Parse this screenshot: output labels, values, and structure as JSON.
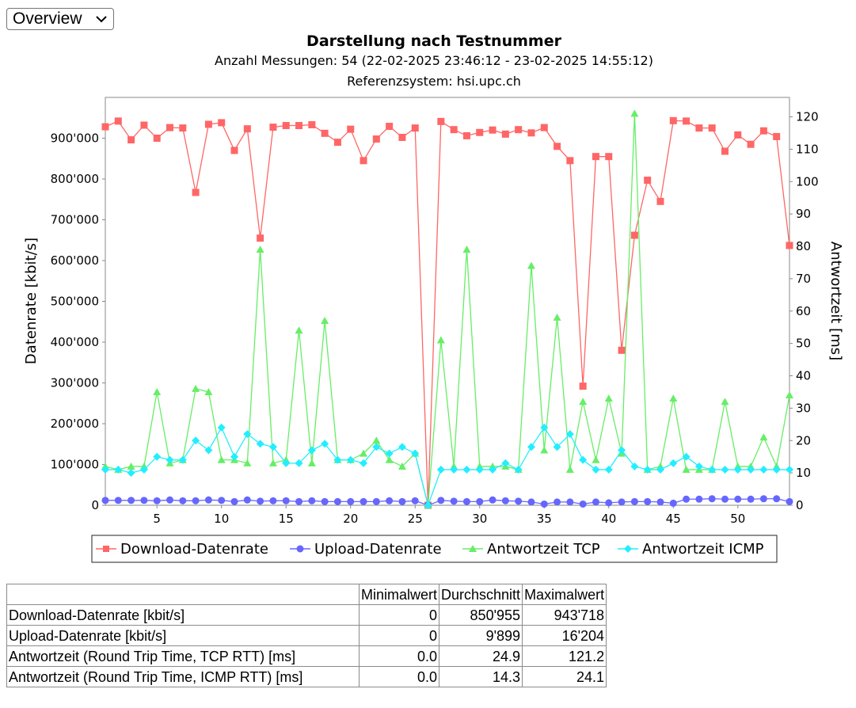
{
  "view_select": {
    "value": "Overview"
  },
  "chart_data": {
    "type": "line",
    "title": "Darstellung nach Testnummer",
    "subtitle1": "Anzahl Messungen: 54 (22-02-2025 23:46:12 - 23-02-2025 14:55:12)",
    "subtitle2": "Referenzsystem: hsi.upc.ch",
    "xlabel": "",
    "ylabel_left": "Datenrate [kbit/s]",
    "ylabel_right": "Antwortzeit [ms]",
    "xlim": [
      1,
      54
    ],
    "ylim_left": [
      0,
      1000000
    ],
    "ylim_right": [
      0,
      126
    ],
    "x_ticks": [
      "5",
      "10",
      "15",
      "20",
      "25",
      "30",
      "35",
      "40",
      "45",
      "50"
    ],
    "x_tick_values": [
      5,
      10,
      15,
      20,
      25,
      30,
      35,
      40,
      45,
      50
    ],
    "y_left_ticks": [
      "0",
      "100'000",
      "200'000",
      "300'000",
      "400'000",
      "500'000",
      "600'000",
      "700'000",
      "800'000",
      "900'000"
    ],
    "y_left_tick_values": [
      0,
      100000,
      200000,
      300000,
      400000,
      500000,
      600000,
      700000,
      800000,
      900000
    ],
    "y_right_ticks": [
      "0",
      "10",
      "20",
      "30",
      "40",
      "50",
      "60",
      "70",
      "80",
      "90",
      "100",
      "110",
      "120"
    ],
    "y_right_tick_values": [
      0,
      10,
      20,
      30,
      40,
      50,
      60,
      70,
      80,
      90,
      100,
      110,
      120
    ],
    "grid": false,
    "legend_position": "bottom",
    "x": [
      1,
      2,
      3,
      4,
      5,
      6,
      7,
      8,
      9,
      10,
      11,
      12,
      13,
      14,
      15,
      16,
      17,
      18,
      19,
      20,
      21,
      22,
      23,
      24,
      25,
      26,
      27,
      28,
      29,
      30,
      31,
      32,
      33,
      34,
      35,
      36,
      37,
      38,
      39,
      40,
      41,
      42,
      43,
      44,
      45,
      46,
      47,
      48,
      49,
      50,
      51,
      52,
      53,
      54
    ],
    "series": [
      {
        "name": "Download-Datenrate",
        "axis": "left",
        "color": "#ff6666",
        "marker": "square",
        "values": [
          928000,
          942000,
          896000,
          932000,
          900000,
          926000,
          925000,
          767000,
          934000,
          938000,
          870000,
          923000,
          655000,
          927000,
          931000,
          931000,
          933000,
          912000,
          890000,
          922000,
          845000,
          898000,
          929000,
          902000,
          925000,
          0,
          941000,
          921000,
          906000,
          914000,
          920000,
          910000,
          921000,
          913000,
          926000,
          880000,
          845000,
          292000,
          855000,
          855000,
          380000,
          662000,
          797000,
          745000,
          943000,
          942000,
          925000,
          925000,
          868000,
          908000,
          885000,
          918000,
          904000,
          637000
        ]
      },
      {
        "name": "Upload-Datenrate",
        "axis": "left",
        "color": "#6666ff",
        "marker": "circle",
        "values": [
          12000,
          12000,
          12000,
          12000,
          11000,
          13000,
          11000,
          11000,
          13000,
          12000,
          9000,
          13000,
          10000,
          11000,
          11000,
          9000,
          11000,
          9000,
          9000,
          9000,
          9000,
          9000,
          11000,
          9000,
          11000,
          0,
          12000,
          10000,
          9000,
          9000,
          13000,
          11000,
          10000,
          8000,
          3000,
          8000,
          8000,
          3000,
          8000,
          6000,
          8000,
          9000,
          9000,
          8000,
          5000,
          15000,
          15000,
          16000,
          15000,
          15000,
          15000,
          16000,
          16000,
          9000
        ]
      },
      {
        "name": "Antwortzeit TCP",
        "axis": "right",
        "color": "#66ee66",
        "marker": "triangle",
        "values": [
          12,
          11,
          12,
          12,
          35,
          13,
          14,
          36,
          35,
          14,
          14,
          13,
          79,
          13,
          14,
          54,
          13,
          57,
          14,
          14,
          16,
          20,
          14,
          12,
          16,
          0,
          51,
          12,
          79,
          12,
          12,
          12,
          11,
          74,
          17,
          58,
          11,
          32,
          14,
          33,
          16,
          121,
          11,
          12,
          33,
          11,
          11,
          11,
          32,
          12,
          12,
          21,
          12,
          34
        ]
      },
      {
        "name": "Antwortzeit ICMP",
        "axis": "right",
        "color": "#22eeff",
        "marker": "diamond",
        "values": [
          11,
          11,
          10,
          11,
          15,
          14,
          14,
          20,
          17,
          24,
          15,
          22,
          19,
          18,
          13,
          13,
          17,
          19,
          14,
          14,
          13,
          18,
          16,
          18,
          16,
          0,
          11,
          11,
          11,
          11,
          11,
          13,
          11,
          18,
          24,
          18,
          22,
          14,
          11,
          11,
          17,
          12,
          11,
          11,
          13,
          15,
          12,
          11,
          11,
          11,
          11,
          11,
          11,
          11
        ]
      }
    ]
  },
  "stats_table": {
    "headers": [
      "",
      "Minimalwert",
      "Durchschnitt",
      "Maximalwert"
    ],
    "rows": [
      {
        "label": "Download-Datenrate [kbit/s]",
        "min": "0",
        "avg": "850'955",
        "max": "943'718"
      },
      {
        "label": "Upload-Datenrate [kbit/s]",
        "min": "0",
        "avg": "9'899",
        "max": "16'204"
      },
      {
        "label": "Antwortzeit (Round Trip Time, TCP RTT) [ms]",
        "min": "0.0",
        "avg": "24.9",
        "max": "121.2"
      },
      {
        "label": "Antwortzeit (Round Trip Time, ICMP RTT) [ms]",
        "min": "0.0",
        "avg": "14.3",
        "max": "24.1"
      }
    ]
  }
}
